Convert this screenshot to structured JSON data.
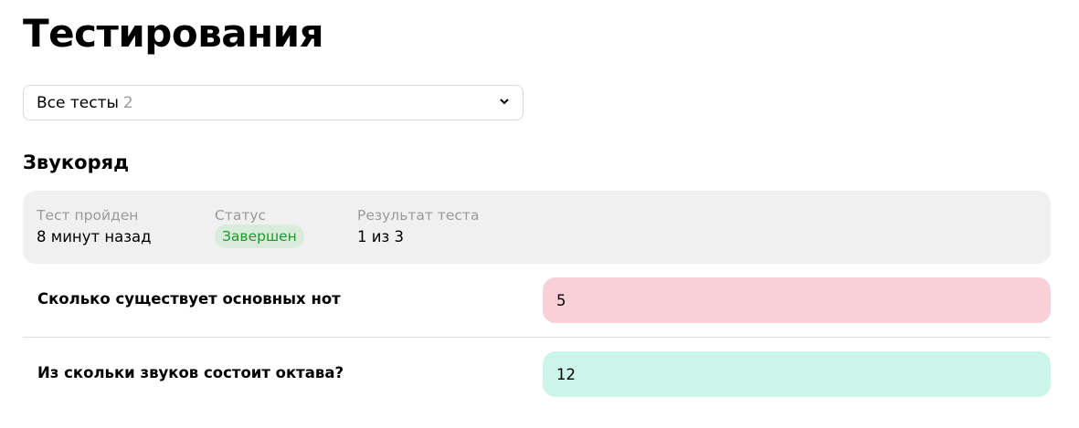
{
  "page": {
    "title": "Тестирования"
  },
  "filter": {
    "selected": "Все тесты",
    "count": "2",
    "icon": "chevron-down-icon"
  },
  "test": {
    "name": "Звукоряд",
    "summary": {
      "passed_label": "Тест пройден",
      "passed_value": "8 минут назад",
      "status_label": "Статус",
      "status_value": "Завершен",
      "result_label": "Результат теста",
      "result_value": "1 из 3"
    },
    "questions": [
      {
        "text": "Сколько существует основных нот",
        "answer": "5",
        "correct": false
      },
      {
        "text": "Из скольки звуков состоит октава?",
        "answer": "12",
        "correct": true
      }
    ]
  },
  "colors": {
    "wrong": "#f9cfd8",
    "correct": "#cbf5e8",
    "status": "#1b9a2a",
    "status_bg": "#d9ecdc"
  }
}
